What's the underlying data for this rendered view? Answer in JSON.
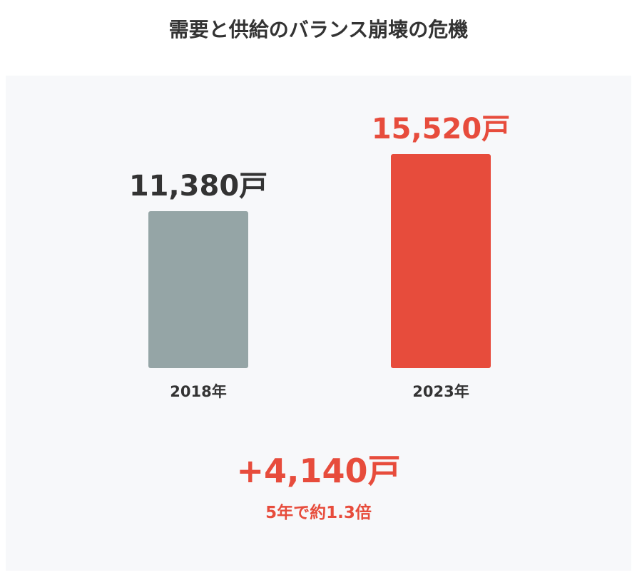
{
  "title": "需要と供給のバランス崩壊の危機",
  "colors": {
    "bar_2018": "#95a5a6",
    "bar_2023": "#e74c3c",
    "label_2018": "#333333",
    "label_2023": "#e74c3c",
    "panel_bg": "#f7f8fa"
  },
  "chart_data": {
    "type": "bar",
    "categories": [
      "2018年",
      "2023年"
    ],
    "values": [
      11380,
      15520
    ],
    "value_labels": [
      "11,380戸",
      "15,520戸"
    ],
    "title": "需要と供給のバランス崩壊の危機",
    "xlabel": "",
    "ylabel": "",
    "grid": false,
    "legend": "none"
  },
  "summary": {
    "difference": "+4,140戸",
    "ratio_text": "5年で約1.3倍"
  }
}
